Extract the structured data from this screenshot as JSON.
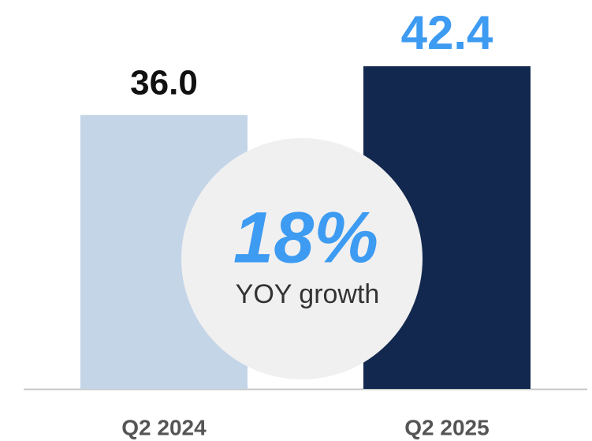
{
  "chart_data": {
    "type": "bar",
    "categories": [
      "Q2 2024",
      "Q2 2025"
    ],
    "values": [
      36,
      42.4
    ],
    "value_labels": [
      "36.0",
      "42.4"
    ],
    "colors": [
      "#c5d5e8",
      "#12284f"
    ],
    "label_colors": [
      "#111111",
      "#3d9bf2"
    ],
    "annotations": [
      "18%",
      "YOY growth"
    ]
  }
}
